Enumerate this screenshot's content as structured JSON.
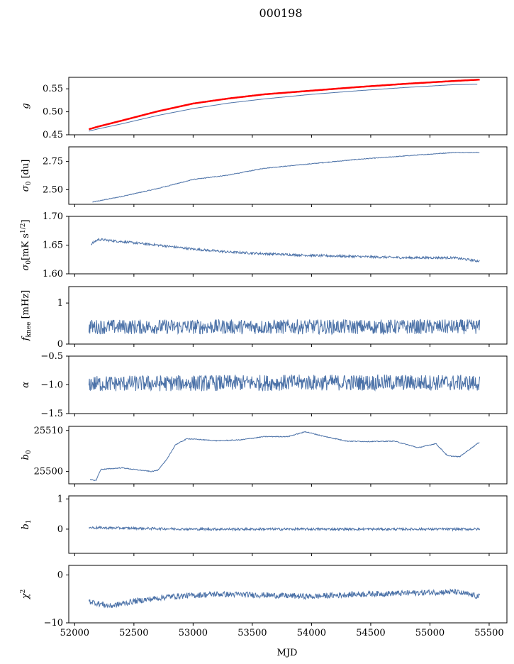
{
  "title": "000198",
  "chart_data": {
    "type": "line",
    "title": "000198",
    "shared_x": {
      "label": "MJD",
      "range": [
        51950,
        55650
      ],
      "ticks": [
        52000,
        52500,
        53000,
        53500,
        54000,
        54500,
        55000,
        55500
      ],
      "tick_labels": [
        "52000",
        "52500",
        "53000",
        "53500",
        "54000",
        "54500",
        "55000",
        "55500"
      ]
    },
    "colors": {
      "series": "#4c72a8",
      "fit": "#ff0000"
    },
    "panels": [
      {
        "id": "g",
        "ylabel": "g",
        "ylim": [
          0.45,
          0.575
        ],
        "yticks": [
          0.45,
          0.5,
          0.55
        ],
        "ytick_labels": [
          "0.45",
          "0.50",
          "0.55"
        ],
        "series": [
          {
            "color": "#ff0000",
            "width": 2.5,
            "points": [
              [
                52120,
                0.462
              ],
              [
                52200,
                0.468
              ],
              [
                52400,
                0.481
              ],
              [
                52700,
                0.501
              ],
              [
                53000,
                0.518
              ],
              [
                53300,
                0.529
              ],
              [
                53600,
                0.538
              ],
              [
                54000,
                0.546
              ],
              [
                54400,
                0.554
              ],
              [
                54800,
                0.561
              ],
              [
                55200,
                0.567
              ],
              [
                55420,
                0.57
              ]
            ]
          },
          {
            "color": "#4c72a8",
            "width": 1,
            "points": [
              [
                52120,
                0.458
              ],
              [
                52200,
                0.463
              ],
              [
                52400,
                0.474
              ],
              [
                52700,
                0.492
              ],
              [
                53000,
                0.507
              ],
              [
                53300,
                0.519
              ],
              [
                53600,
                0.528
              ],
              [
                54000,
                0.538
              ],
              [
                54400,
                0.546
              ],
              [
                54800,
                0.553
              ],
              [
                55200,
                0.559
              ],
              [
                55400,
                0.56
              ]
            ]
          }
        ]
      },
      {
        "id": "sigma0_du",
        "ylabel": "σ0 [du]",
        "ylim": [
          2.37,
          2.88
        ],
        "yticks": [
          2.5,
          2.75
        ],
        "ytick_labels": [
          "2.50",
          "2.75"
        ],
        "series": [
          {
            "color": "#4c72a8",
            "width": 1,
            "noise": 0.003,
            "points": [
              [
                52150,
                2.39
              ],
              [
                52400,
                2.44
              ],
              [
                52700,
                2.51
              ],
              [
                53000,
                2.59
              ],
              [
                53300,
                2.63
              ],
              [
                53600,
                2.69
              ],
              [
                54000,
                2.73
              ],
              [
                54400,
                2.77
              ],
              [
                54800,
                2.8
              ],
              [
                55200,
                2.83
              ],
              [
                55420,
                2.83
              ]
            ]
          }
        ]
      },
      {
        "id": "sigma0_mk",
        "ylabel": "σ0[mK s^1/2]",
        "ylim": [
          1.6,
          1.7
        ],
        "yticks": [
          1.6,
          1.65,
          1.7
        ],
        "ytick_labels": [
          "1.60",
          "1.65",
          "1.70"
        ],
        "series": [
          {
            "color": "#4c72a8",
            "width": 1,
            "noise": 0.002,
            "points": [
              [
                52140,
                1.652
              ],
              [
                52200,
                1.66
              ],
              [
                52400,
                1.656
              ],
              [
                52700,
                1.65
              ],
              [
                53000,
                1.643
              ],
              [
                53300,
                1.638
              ],
              [
                53600,
                1.635
              ],
              [
                54000,
                1.632
              ],
              [
                54400,
                1.63
              ],
              [
                54800,
                1.628
              ],
              [
                55200,
                1.628
              ],
              [
                55420,
                1.622
              ]
            ]
          }
        ]
      },
      {
        "id": "fknee",
        "ylabel": "f_knee [mHz]",
        "ylim": [
          0,
          1.4
        ],
        "yticks": [
          0,
          1
        ],
        "ytick_labels": [
          "0",
          "1"
        ],
        "series": [
          {
            "color": "#4c72a8",
            "width": 1,
            "noise": 0.18,
            "points": [
              [
                52120,
                0.42
              ],
              [
                53000,
                0.42
              ],
              [
                54000,
                0.42
              ],
              [
                55000,
                0.42
              ],
              [
                55420,
                0.42
              ]
            ]
          }
        ]
      },
      {
        "id": "alpha",
        "ylabel": "α",
        "ylim": [
          -1.5,
          -0.5
        ],
        "yticks": [
          -1.5,
          -1.0,
          -0.5
        ],
        "ytick_labels": [
          "−1.5",
          "−1.0",
          "−0.5"
        ],
        "series": [
          {
            "color": "#4c72a8",
            "width": 1,
            "noise": 0.14,
            "points": [
              [
                52120,
                -0.98
              ],
              [
                53000,
                -0.97
              ],
              [
                54000,
                -0.96
              ],
              [
                55000,
                -0.96
              ],
              [
                55420,
                -0.97
              ]
            ]
          }
        ]
      },
      {
        "id": "b0",
        "ylabel": "b0",
        "ylim": [
          25497,
          25511
        ],
        "yticks": [
          25500,
          25510
        ],
        "ytick_labels": [
          "25500",
          "25510"
        ],
        "series": [
          {
            "color": "#4c72a8",
            "width": 1,
            "noise": 0.1,
            "points": [
              [
                52130,
                25498
              ],
              [
                52180,
                25497.8
              ],
              [
                52220,
                25500.5
              ],
              [
                52400,
                25500.9
              ],
              [
                52500,
                25500.5
              ],
              [
                52650,
                25500
              ],
              [
                52700,
                25500.3
              ],
              [
                52780,
                25503
              ],
              [
                52850,
                25506.5
              ],
              [
                52950,
                25508
              ],
              [
                53200,
                25507.5
              ],
              [
                53400,
                25507.7
              ],
              [
                53600,
                25508.5
              ],
              [
                53800,
                25508.5
              ],
              [
                53950,
                25509.7
              ],
              [
                54100,
                25508.6
              ],
              [
                54300,
                25507.4
              ],
              [
                54500,
                25507.3
              ],
              [
                54700,
                25507.4
              ],
              [
                54900,
                25505.8
              ],
              [
                55050,
                25506.8
              ],
              [
                55150,
                25503.8
              ],
              [
                55250,
                25503.6
              ],
              [
                55420,
                25507.2
              ]
            ]
          }
        ]
      },
      {
        "id": "b1",
        "ylabel": "b1",
        "ylim": [
          -0.8,
          1.1
        ],
        "yticks": [
          0,
          1
        ],
        "ytick_labels": [
          "0",
          "1"
        ],
        "series": [
          {
            "color": "#4c72a8",
            "width": 1,
            "noise": 0.04,
            "points": [
              [
                52120,
                0.05
              ],
              [
                53000,
                0.0
              ],
              [
                54000,
                0.0
              ],
              [
                55000,
                0.0
              ],
              [
                55420,
                0.0
              ]
            ]
          }
        ]
      },
      {
        "id": "chi2",
        "ylabel": "χ²",
        "ylim": [
          -10,
          2
        ],
        "yticks": [
          -10,
          0
        ],
        "ytick_labels": [
          "−10",
          "0"
        ],
        "series": [
          {
            "color": "#4c72a8",
            "width": 1,
            "noise": 0.6,
            "points": [
              [
                52120,
                -5.5
              ],
              [
                52300,
                -6.5
              ],
              [
                52500,
                -5.5
              ],
              [
                52800,
                -4.5
              ],
              [
                53200,
                -4.0
              ],
              [
                53600,
                -4.2
              ],
              [
                54000,
                -4.5
              ],
              [
                54400,
                -4.0
              ],
              [
                54800,
                -3.8
              ],
              [
                55200,
                -3.5
              ],
              [
                55420,
                -4.5
              ]
            ]
          }
        ]
      }
    ]
  }
}
